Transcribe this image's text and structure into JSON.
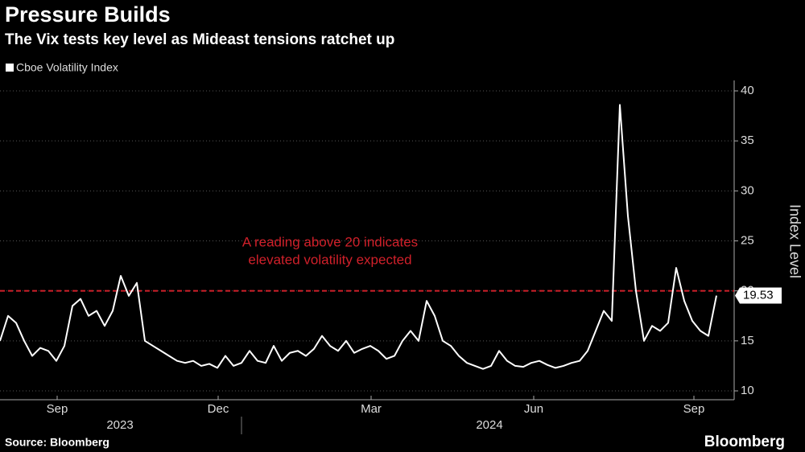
{
  "chart_data": {
    "type": "line",
    "title": "Pressure Builds",
    "subtitle": "The Vix tests key level as Mideast tensions ratchet up",
    "y_axis_label": "Index Level",
    "source": "Source: Bloomberg",
    "brand": "Bloomberg",
    "series": [
      {
        "name": "Cboe Volatility Index",
        "color": "#ffffff",
        "values": [
          15,
          17.5,
          16.8,
          15,
          13.5,
          14.3,
          14,
          13,
          14.5,
          18.5,
          19.2,
          17.5,
          18,
          16.5,
          18,
          21.5,
          19.5,
          20.8,
          15,
          14.5,
          14,
          13.5,
          13,
          12.8,
          13,
          12.5,
          12.7,
          12.3,
          13.5,
          12.5,
          12.8,
          14,
          13,
          12.8,
          14.5,
          13,
          13.8,
          14,
          13.5,
          14.2,
          15.5,
          14.5,
          14,
          15,
          13.8,
          14.2,
          14.5,
          14,
          13.2,
          13.5,
          15,
          16,
          15,
          19,
          17.5,
          15,
          14.5,
          13.5,
          12.8,
          12.5,
          12.2,
          12.5,
          14,
          13,
          12.5,
          12.4,
          12.8,
          13,
          12.6,
          12.3,
          12.5,
          12.8,
          13,
          14,
          16,
          18,
          17,
          38.6,
          27.5,
          20,
          15,
          16.5,
          16,
          16.8,
          22.3,
          19,
          17,
          16,
          15.5,
          19.53
        ]
      }
    ],
    "xlim": [
      0,
      90.5
    ],
    "xticks": [
      {
        "value": 7.1,
        "label": "Sep"
      },
      {
        "value": 27.1,
        "label": "Dec"
      },
      {
        "value": 46.1,
        "label": "Mar"
      },
      {
        "value": 66.3,
        "label": "Jun"
      },
      {
        "value": 86.2,
        "label": "Sep"
      }
    ],
    "year_labels": [
      {
        "value": 14.9,
        "label": "2023"
      },
      {
        "value": 60.8,
        "label": "2024"
      }
    ],
    "ylim": [
      10,
      40
    ],
    "yticks": [
      10,
      15,
      20,
      25,
      30,
      35,
      40
    ],
    "grid": true,
    "threshold": {
      "value": 20,
      "color": "#d0202a",
      "annotation": [
        "A reading above 20 indicates",
        "elevated volatility expected"
      ]
    }
  }
}
